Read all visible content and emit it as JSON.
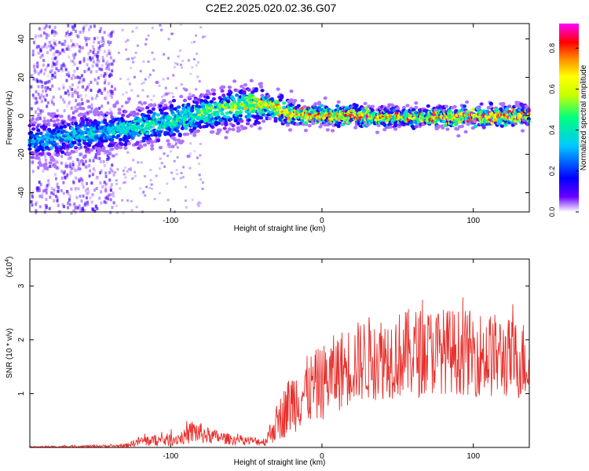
{
  "title": "C2E2.2025.020.02.36.G07",
  "chart_data": [
    {
      "type": "heatmap",
      "xlabel": "Height of straight line (km)",
      "ylabel": "Frequency (Hz)",
      "xlim": [
        -193,
        137
      ],
      "ylim": [
        -50,
        48
      ],
      "xticks": [
        -100,
        0,
        100
      ],
      "xtick_labels": [
        "-100",
        "0",
        "100"
      ],
      "yticks": [
        -40,
        -20,
        0,
        20,
        40
      ],
      "ytick_labels": [
        "-40",
        "-20",
        "0",
        "20",
        "40"
      ],
      "colorbar": {
        "label": "Normalized spectral amplitude",
        "range": [
          0,
          0.92
        ],
        "ticks": [
          0,
          0.2,
          0.4,
          0.6,
          0.8
        ],
        "tick_labels": [
          "0.0",
          "0.2",
          "0.4",
          "0.6",
          "0.8"
        ],
        "colormap": [
          "#ffffff",
          "#6a00ff",
          "#0000ff",
          "#00c8ff",
          "#00ff80",
          "#c8ff00",
          "#ffff00",
          "#ff8000",
          "#ff0000",
          "#ff00ff"
        ]
      },
      "ridge": {
        "x": [
          -190,
          -160,
          -130,
          -100,
          -80,
          -60,
          -45,
          -35,
          -20,
          0,
          20,
          50,
          80,
          110,
          135
        ],
        "freq": [
          -13,
          -10,
          -7,
          -3,
          1,
          4,
          6,
          5,
          1,
          0,
          0,
          -1,
          -1,
          0,
          0
        ],
        "peak_amplitude": [
          0.35,
          0.4,
          0.45,
          0.5,
          0.55,
          0.6,
          0.7,
          0.75,
          0.8,
          0.85,
          0.85,
          0.8,
          0.85,
          0.9,
          0.85
        ]
      }
    },
    {
      "type": "line",
      "xlabel": "Height of straight line (km)",
      "ylabel": "SNR (10 * v/v)",
      "y_multiplier": "(x10",
      "y_multiplier_exp": "4",
      "y_multiplier_close": ")",
      "xlim": [
        -193,
        137
      ],
      "ylim": [
        0,
        3.5
      ],
      "xticks": [
        -100,
        0,
        100
      ],
      "xtick_labels": [
        "-100",
        "0",
        "100"
      ],
      "yticks": [
        1,
        2,
        3
      ],
      "ytick_labels": [
        "1",
        "2",
        "3"
      ],
      "color": "#e8302c",
      "envelope": {
        "x": [
          -193,
          -160,
          -130,
          -120,
          -100,
          -90,
          -85,
          -75,
          -60,
          -45,
          -38,
          -30,
          -20,
          -10,
          0,
          10,
          20,
          30,
          45,
          60,
          80,
          100,
          115,
          125,
          137
        ],
        "median": [
          0.01,
          0.02,
          0.03,
          0.12,
          0.14,
          0.2,
          0.3,
          0.22,
          0.15,
          0.12,
          0.1,
          0.45,
          0.85,
          1.05,
          1.2,
          1.4,
          1.55,
          1.65,
          1.7,
          1.75,
          1.8,
          1.75,
          1.7,
          1.65,
          1.6
        ],
        "spread": [
          0.01,
          0.02,
          0.03,
          0.1,
          0.12,
          0.14,
          0.25,
          0.15,
          0.1,
          0.08,
          0.08,
          0.35,
          0.6,
          0.65,
          0.7,
          0.75,
          0.75,
          0.8,
          0.8,
          0.85,
          0.8,
          0.8,
          0.8,
          0.75,
          0.75
        ]
      },
      "max_value": 3.5
    }
  ]
}
